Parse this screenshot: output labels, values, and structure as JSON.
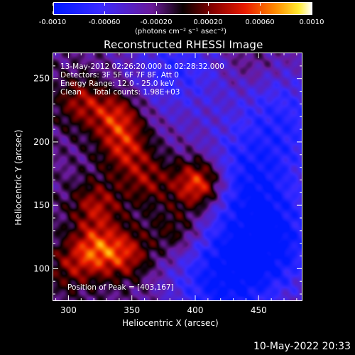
{
  "colorbar": {
    "labels": [
      "-0.0010",
      "-0.00060",
      "-0.00020",
      "0.00020",
      "0.00060",
      "0.0010"
    ],
    "unit": "(photons cm⁻² s⁻¹ asec⁻²)",
    "range": [
      -0.001,
      0.001
    ]
  },
  "chart_data": {
    "type": "heatmap",
    "title": "Reconstructed RHESSI Image",
    "xlabel": "Heliocentric X (arcsec)",
    "ylabel": "Heliocentric Y (arcsec)",
    "xlim": [
      288,
      484
    ],
    "ylim": [
      75,
      270
    ],
    "xticks": [
      "300",
      "350",
      "400",
      "450"
    ],
    "yticks": [
      "100",
      "150",
      "200",
      "250"
    ],
    "annotations": {
      "time": "13-May-2012 02:26:20.000 to 02:28:32.000",
      "detectors": "Detectors: 3F 5F 6F 7F 8F, Att 0",
      "energy": "Energy Range: 12.0 - 25.0 keV",
      "clean": "Clean     Total counts: 1.98E+03",
      "peak": "Position of Peak = [403,167]"
    },
    "peak": [
      403,
      167
    ],
    "sources": [
      {
        "x": 403,
        "y": 167,
        "value": 0.00095
      },
      {
        "x": 338,
        "y": 220,
        "value": 0.0006
      },
      {
        "x": 345,
        "y": 195,
        "value": 0.0005
      },
      {
        "x": 310,
        "y": 232,
        "value": 0.00045
      },
      {
        "x": 322,
        "y": 150,
        "value": 0.0005
      },
      {
        "x": 320,
        "y": 115,
        "value": 0.00065
      },
      {
        "x": 345,
        "y": 112,
        "value": 0.00055
      },
      {
        "x": 362,
        "y": 170,
        "value": 0.0004
      },
      {
        "x": 385,
        "y": 130,
        "value": 0.00035
      },
      {
        "x": 300,
        "y": 100,
        "value": 0.0003
      },
      {
        "x": 440,
        "y": 262,
        "value": 0.00015
      },
      {
        "x": 460,
        "y": 120,
        "value": -0.0007
      },
      {
        "x": 440,
        "y": 170,
        "value": -0.0006
      },
      {
        "x": 385,
        "y": 258,
        "value": -0.0005
      },
      {
        "x": 470,
        "y": 220,
        "value": -0.0005
      },
      {
        "x": 420,
        "y": 90,
        "value": -0.0007
      }
    ]
  },
  "footer": {
    "date": "10-May-2022 20:33"
  }
}
